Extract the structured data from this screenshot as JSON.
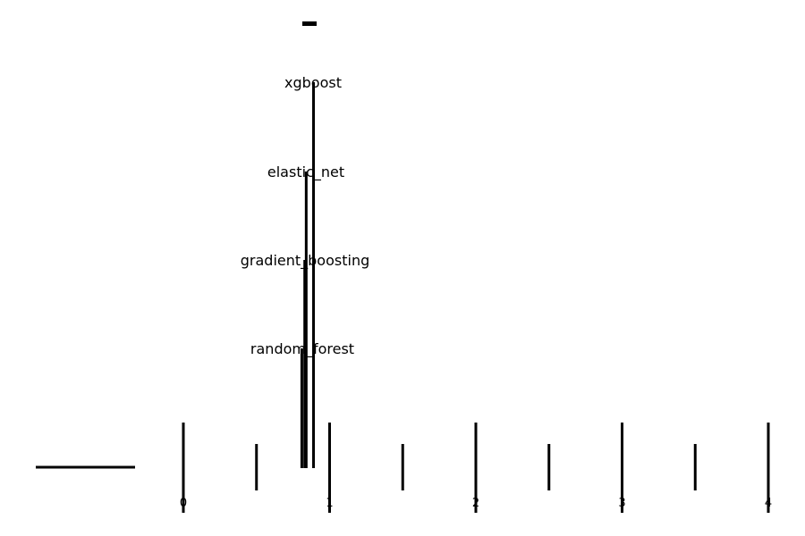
{
  "diagram": {
    "type": "critical-difference",
    "axis": {
      "min": 0,
      "max": 4,
      "major_ticks": [
        0,
        1,
        2,
        3,
        4
      ],
      "minor_ticks": [
        0.5,
        1.5,
        2.5,
        3.5
      ]
    },
    "tick_labels": [
      "0",
      "1",
      "2",
      "3",
      "4"
    ],
    "methods": [
      {
        "name": "xgboost",
        "rank": 0.89
      },
      {
        "name": "elastic_net",
        "rank": 0.84
      },
      {
        "name": "gradient_boosting",
        "rank": 0.83
      },
      {
        "name": "random_forest",
        "rank": 0.81
      }
    ],
    "cd_bar": {
      "from": 0.81,
      "to": 0.89
    }
  }
}
